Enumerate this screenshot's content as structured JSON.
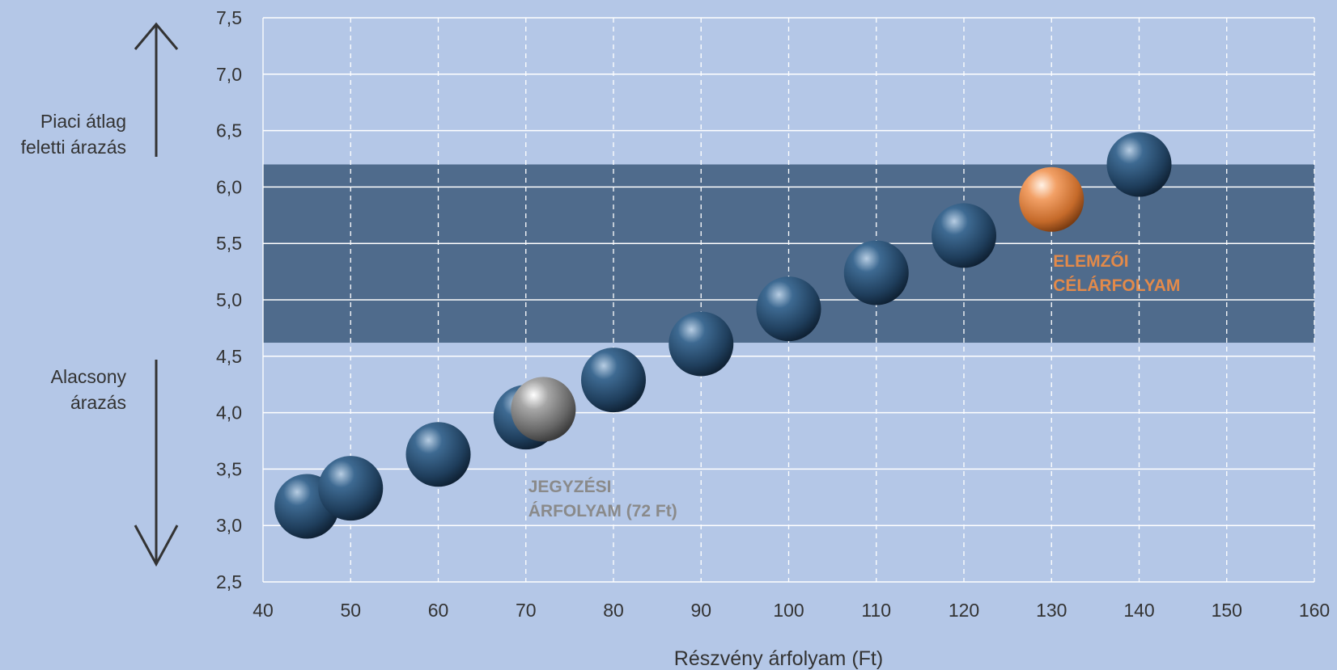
{
  "chart_data": {
    "type": "scatter",
    "xlabel": "Részvény árfolyam (Ft)",
    "ylabel": "",
    "xlim": [
      40,
      160
    ],
    "ylim": [
      2.5,
      7.5
    ],
    "x_ticks": [
      "40",
      "50",
      "60",
      "70",
      "80",
      "90",
      "100",
      "110",
      "120",
      "130",
      "140",
      "150",
      "160"
    ],
    "y_ticks": [
      "2,5",
      "3,0",
      "3,5",
      "4,0",
      "4,5",
      "5,0",
      "5,5",
      "6,0",
      "6,5",
      "7,0",
      "7,5"
    ],
    "grid": true,
    "band": {
      "y_from": 4.62,
      "y_to": 6.2,
      "color": "#4f6b8c"
    },
    "colors": {
      "point": "#2e5173",
      "listing": "#8f8f8f",
      "target": "#e0925a",
      "listing_label": "#8a8a8a",
      "target_label": "#e38a4a"
    },
    "series": [
      {
        "points": [
          {
            "x": 45,
            "y": 3.17
          },
          {
            "x": 50,
            "y": 3.33
          },
          {
            "x": 60,
            "y": 3.63
          },
          {
            "x": 70,
            "y": 3.96
          },
          {
            "x": 80,
            "y": 4.29
          },
          {
            "x": 90,
            "y": 4.61
          },
          {
            "x": 100,
            "y": 4.92
          },
          {
            "x": 110,
            "y": 5.24
          },
          {
            "x": 120,
            "y": 5.57
          },
          {
            "x": 140,
            "y": 6.2
          }
        ]
      }
    ],
    "highlights": [
      {
        "kind": "listing",
        "x": 72,
        "y": 4.03,
        "label_lines": [
          "JEGYZÉSI",
          "ÁRFOLYAM (72 Ft)"
        ]
      },
      {
        "kind": "target",
        "x": 130,
        "y": 5.89,
        "label_lines": [
          "ELEMZŐI",
          "CÉLÁRFOLYAM"
        ]
      }
    ]
  },
  "side_labels": {
    "top": "Piaci átlag feletti árazás",
    "bottom": "Alacsony árazás"
  }
}
